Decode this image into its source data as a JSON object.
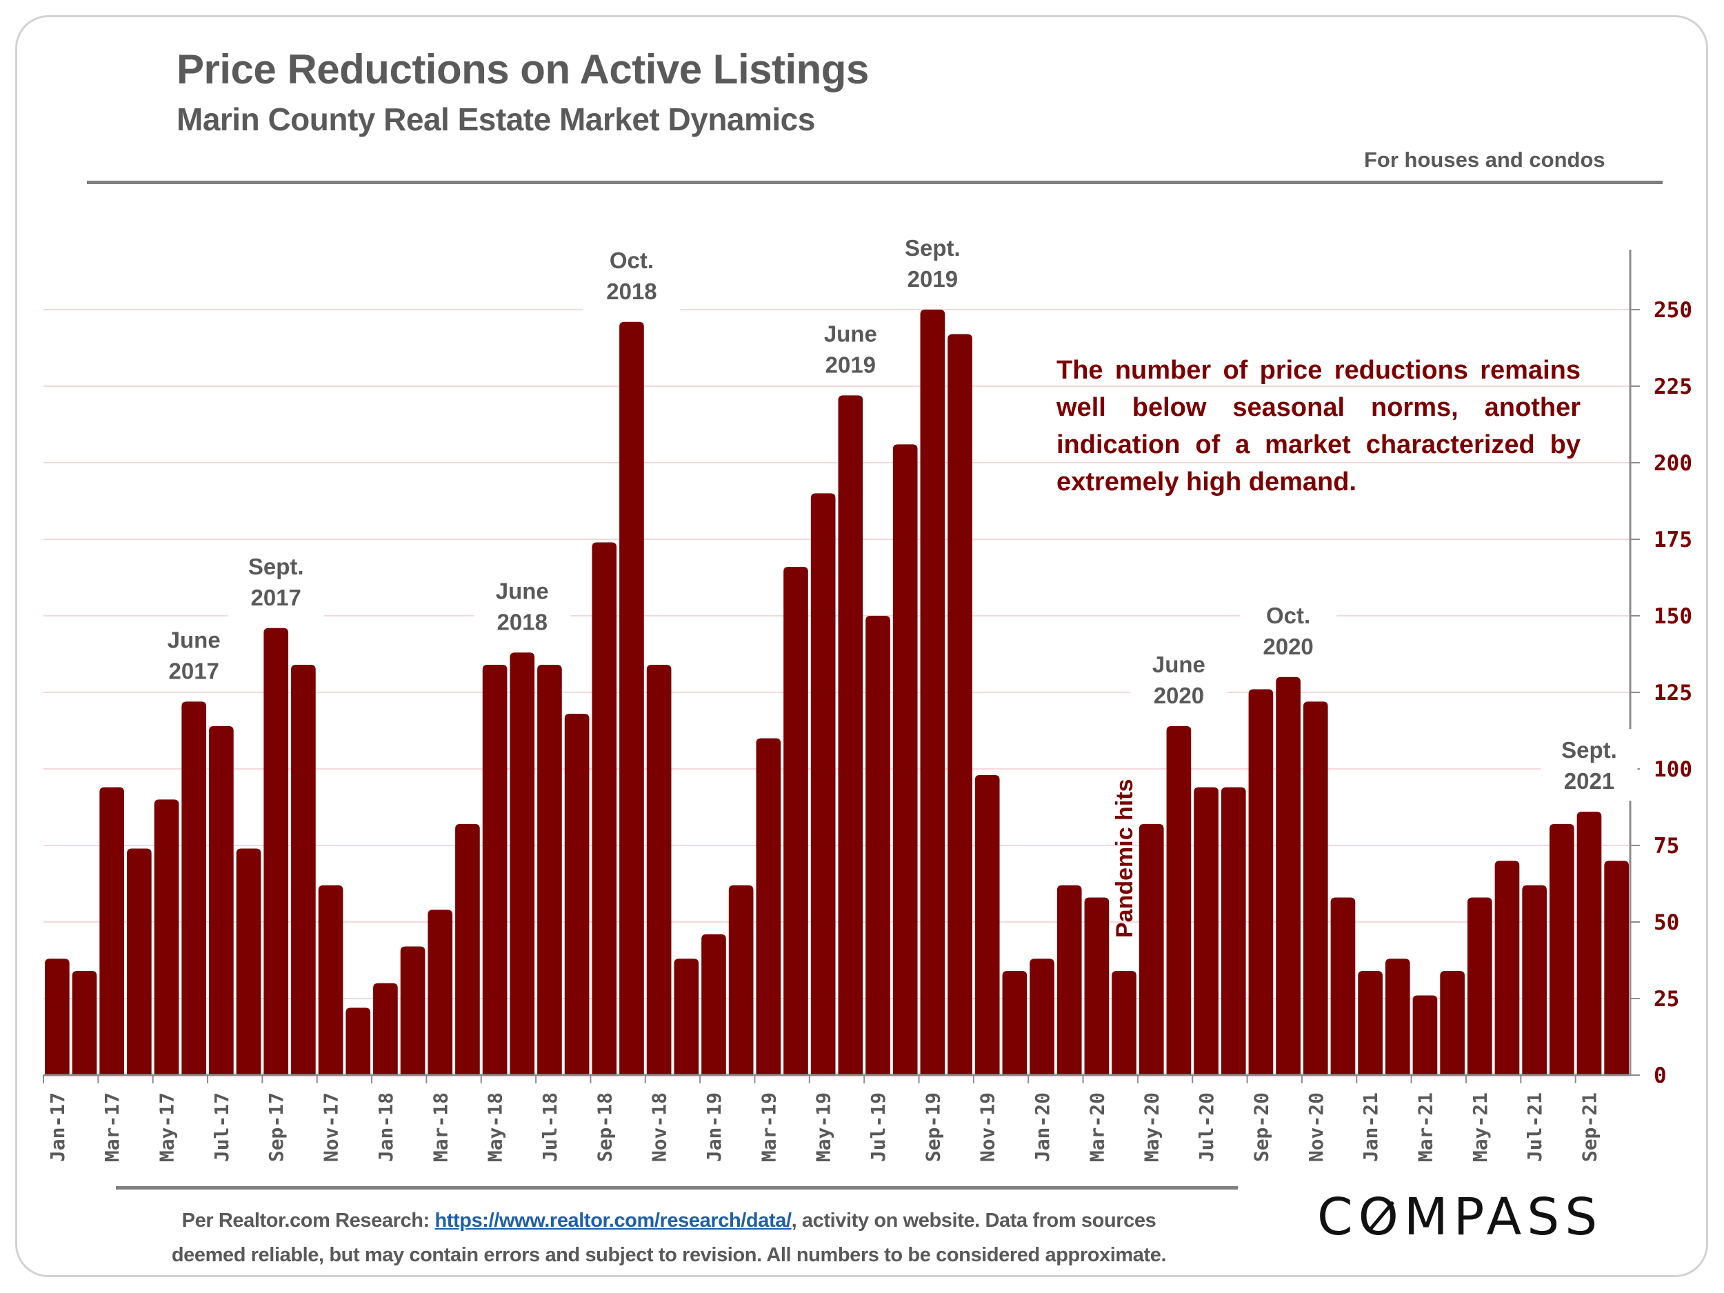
{
  "header": {
    "title": "Price Reductions on Active Listings",
    "subtitle": "Marin County Real Estate Market Dynamics",
    "scope_note": "For houses and condos"
  },
  "callout": "The number of price reductions remains well below seasonal norms, another indication of a market characterized by extremely high demand.",
  "footer": {
    "source_prefix": "Per Realtor.com Research:  ",
    "source_link": "https://www.realtor.com/research/data/",
    "source_suffix_line1": ", activity on website. Data from sources",
    "source_line2": "deemed reliable, but may contain errors and subject to revision. All numbers to be considered approximate.",
    "logo_text_before": "C",
    "logo_text_o": "O",
    "logo_text_after": "MPASS"
  },
  "colors": {
    "bar": "#7b0000",
    "tick_label_y": "#7b0000",
    "tick_label_x": "#595959",
    "annotation": "#595959",
    "gridline": "#f3d9dc",
    "axis": "#8c8c8c"
  },
  "chart_data": {
    "type": "bar",
    "title": "Price Reductions on Active Listings",
    "subtitle": "Marin County Real Estate Market Dynamics",
    "xlabel": "",
    "ylabel": "",
    "y_axis_side": "right",
    "ylim": [
      0,
      250
    ],
    "yticks": [
      0,
      25,
      50,
      75,
      100,
      125,
      150,
      175,
      200,
      225,
      250
    ],
    "grid": true,
    "legend": "none",
    "categories": [
      "Jan-17",
      "Feb-17",
      "Mar-17",
      "Apr-17",
      "May-17",
      "Jun-17",
      "Jul-17",
      "Aug-17",
      "Sep-17",
      "Oct-17",
      "Nov-17",
      "Dec-17",
      "Jan-18",
      "Feb-18",
      "Mar-18",
      "Apr-18",
      "May-18",
      "Jun-18",
      "Jul-18",
      "Aug-18",
      "Sep-18",
      "Oct-18",
      "Nov-18",
      "Dec-18",
      "Jan-19",
      "Feb-19",
      "Mar-19",
      "Apr-19",
      "May-19",
      "Jun-19",
      "Jul-19",
      "Aug-19",
      "Sep-19",
      "Oct-19",
      "Nov-19",
      "Dec-19",
      "Jan-20",
      "Feb-20",
      "Mar-20",
      "Apr-20",
      "May-20",
      "Jun-20",
      "Jul-20",
      "Aug-20",
      "Sep-20",
      "Oct-20",
      "Nov-20",
      "Dec-20",
      "Jan-21",
      "Feb-21",
      "Mar-21",
      "Apr-21",
      "May-21",
      "Jun-21",
      "Jul-21",
      "Aug-21",
      "Sep-21",
      "Oct-21"
    ],
    "xtick_labels": [
      "Jan-17",
      "Mar-17",
      "May-17",
      "Jul-17",
      "Sep-17",
      "Nov-17",
      "Jan-18",
      "Mar-18",
      "May-18",
      "Jul-18",
      "Sep-18",
      "Nov-18",
      "Jan-19",
      "Mar-19",
      "May-19",
      "Jul-19",
      "Sep-19",
      "Nov-19",
      "Jan-20",
      "Mar-20",
      "May-20",
      "Jul-20",
      "Sep-20",
      "Nov-20",
      "Jan-21",
      "Mar-21",
      "May-21",
      "Jul-21",
      "Sep-21"
    ],
    "series": [
      {
        "name": "Price reductions",
        "values": [
          38,
          34,
          94,
          74,
          90,
          122,
          114,
          74,
          146,
          134,
          62,
          22,
          30,
          42,
          54,
          82,
          134,
          138,
          134,
          118,
          174,
          246,
          134,
          38,
          46,
          62,
          110,
          166,
          190,
          222,
          150,
          206,
          250,
          242,
          98,
          34,
          38,
          62,
          58,
          34,
          82,
          114,
          94,
          94,
          126,
          130,
          122,
          58,
          34,
          38,
          26,
          34,
          58,
          70,
          62,
          82,
          86,
          70
        ]
      }
    ],
    "annotations": [
      {
        "category": "Jun-17",
        "line1": "June",
        "line2": "2017"
      },
      {
        "category": "Sep-17",
        "line1": "Sept.",
        "line2": "2017"
      },
      {
        "category": "Jun-18",
        "line1": "June",
        "line2": "2018"
      },
      {
        "category": "Oct-18",
        "line1": "Oct.",
        "line2": "2018"
      },
      {
        "category": "Jun-19",
        "line1": "June",
        "line2": "2019"
      },
      {
        "category": "Sep-19",
        "line1": "Sept.",
        "line2": "2019"
      },
      {
        "category": "Jun-20",
        "line1": "June",
        "line2": "2020"
      },
      {
        "category": "Oct-20",
        "line1": "Oct.",
        "line2": "2020"
      },
      {
        "category": "Sep-21",
        "line1": "Sept.",
        "line2": "2021"
      }
    ],
    "event_marker": {
      "category": "Apr-20",
      "text": "Pandemic hits"
    }
  }
}
